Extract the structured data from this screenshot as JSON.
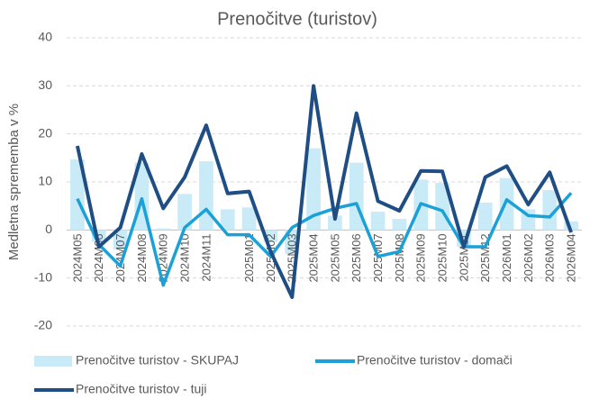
{
  "chart_data": {
    "type": "bar-line",
    "title": "Prenočitve (turistov)",
    "y_label": "Medletna sprememba v %",
    "categories": [
      "2024M05",
      "2024M06",
      "2024M07",
      "2024M08",
      "2024M09",
      "2024M10",
      "2024M11",
      null,
      "2025M01",
      "2025M02",
      "2025M03",
      "2025M04",
      "2025M05",
      "2025M06",
      "2025M07",
      "2025M08",
      "2025M09",
      "2025M10",
      "2025M11",
      "2025M12",
      "2026M01",
      "2026M02",
      "2026M03",
      "2026M04"
    ],
    "series": [
      {
        "name": "Prenočitve turistov - SKUPAJ",
        "kind": "bar",
        "color": "#c9ebf8",
        "values": [
          14.7,
          -2.5,
          -4,
          14,
          0.3,
          7.5,
          14.3,
          4.3,
          4.7,
          -2.5,
          -5,
          17,
          3,
          14,
          3.8,
          2.3,
          10.5,
          9.8,
          -3.5,
          5.7,
          10.8,
          4.3,
          8.3,
          1.8
        ]
      },
      {
        "name": "Prenočitve turistov - domači",
        "kind": "line",
        "color": "#1ca0d8",
        "values": [
          6.5,
          -3,
          -7.5,
          6.5,
          -11.5,
          0.5,
          4.3,
          -1,
          -1,
          -5.5,
          0.5,
          3,
          4.5,
          5.5,
          -5.5,
          -4.5,
          5.5,
          4,
          -3.5,
          -3.5,
          6.3,
          3,
          2.7,
          7.7
        ]
      },
      {
        "name": "Prenočitve turistov - tuji",
        "kind": "line",
        "color": "#1f4e85",
        "values": [
          17.5,
          -3.5,
          0.5,
          15.8,
          4.5,
          11,
          21.8,
          7.6,
          8,
          -4.5,
          -14,
          30,
          2.3,
          24.3,
          6,
          4,
          12.3,
          12.2,
          -3.5,
          11,
          13.3,
          5.3,
          12,
          -0.5
        ]
      }
    ],
    "ylim": [
      -20,
      40
    ],
    "yticks": [
      -20,
      -10,
      0,
      10,
      20,
      30,
      40
    ],
    "grid": true
  }
}
